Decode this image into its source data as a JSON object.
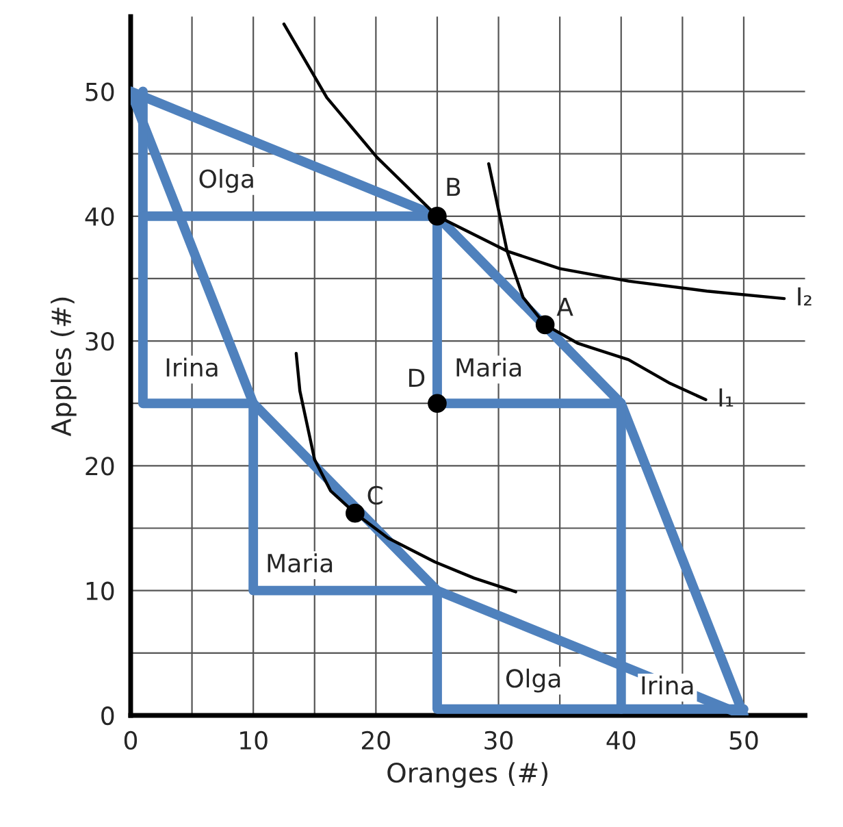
{
  "chart_data": {
    "type": "line",
    "xlabel": "Oranges (#)",
    "ylabel": "Apples (#)",
    "xlim": [
      0,
      55
    ],
    "ylim": [
      0,
      56
    ],
    "xticks": [
      0,
      {
        "value": 5,
        "label": null
      },
      10,
      {
        "value": 15,
        "label": null
      },
      20,
      {
        "value": 25,
        "label": null
      },
      30,
      {
        "value": 35,
        "label": null
      },
      40,
      {
        "value": 45,
        "label": null
      },
      50
    ],
    "yticks": [
      0,
      {
        "value": 5,
        "label": null
      },
      10,
      {
        "value": 15,
        "label": null
      },
      20,
      {
        "value": 25,
        "label": null
      },
      30,
      {
        "value": 35,
        "label": null
      },
      40,
      {
        "value": 45,
        "label": null
      },
      50
    ],
    "grid": true,
    "series": [
      {
        "color": "#4f81bd",
        "x": [
          0,
          25,
          40,
          50
        ],
        "values": [
          50,
          40,
          25,
          0
        ]
      },
      {
        "color": "#4f81bd",
        "x": [
          0,
          10,
          25,
          50
        ],
        "values": [
          50,
          25,
          10,
          0
        ]
      },
      {
        "color": "#4f81bd",
        "x": [
          1,
          1,
          10
        ],
        "values": [
          50,
          25,
          25
        ]
      },
      {
        "color": "#4f81bd",
        "x": [
          1,
          25
        ],
        "values": [
          40,
          40
        ]
      },
      {
        "color": "#4f81bd",
        "x": [
          25,
          25,
          40,
          40
        ],
        "values": [
          40,
          25,
          25,
          0.5
        ]
      },
      {
        "color": "#4f81bd",
        "x": [
          10,
          10,
          25,
          25,
          50
        ],
        "values": [
          25,
          10,
          10,
          0.5,
          0.5
        ]
      },
      {
        "name": "I₂",
        "color": "#000000",
        "x": [
          12.5,
          16,
          20.1,
          25,
          30.7,
          35,
          40.6,
          47,
          53.3
        ],
        "values": [
          55.4,
          49.5,
          44.7,
          40,
          37.2,
          35.8,
          34.8,
          34,
          33.4
        ]
      },
      {
        "name": "I₁",
        "color": "#000000",
        "x": [
          29.2,
          30,
          30.7,
          32,
          33.8,
          36.5,
          40.6,
          44,
          46.9
        ],
        "values": [
          44.2,
          40.5,
          37.2,
          33.5,
          31.3,
          29.8,
          28.5,
          26.6,
          25.3
        ]
      },
      {
        "color": "#000000",
        "x": [
          13.5,
          13.8,
          15,
          16.3,
          18.3,
          21,
          24.8,
          28,
          31.4
        ],
        "values": [
          29,
          26,
          20.5,
          18,
          16.2,
          14.2,
          12.3,
          11,
          9.9
        ]
      },
      {
        "type": "scatter",
        "color": "#000000",
        "x": [
          33.8,
          25,
          18.3,
          25
        ],
        "values": [
          31.3,
          40,
          16.2,
          25
        ],
        "value_labels": [
          "A",
          "B",
          "C",
          "D"
        ]
      }
    ],
    "annotations": [
      "Olga",
      "Irina",
      "Maria",
      "Maria",
      "Olga",
      "Irina"
    ]
  }
}
